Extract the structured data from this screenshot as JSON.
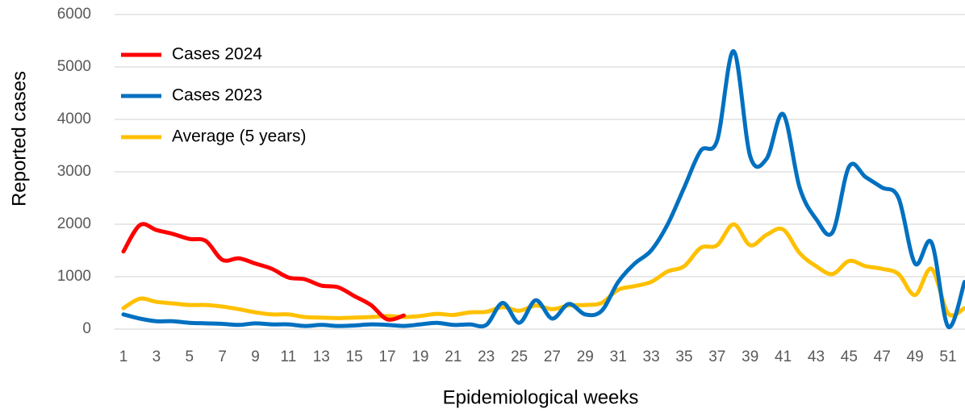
{
  "chart_data": {
    "type": "line",
    "x_label": "Epidemiological weeks",
    "y_label": "Reported cases",
    "categories": [
      1,
      null,
      3,
      null,
      5,
      null,
      7,
      null,
      9,
      null,
      11,
      null,
      13,
      null,
      15,
      null,
      17,
      null,
      19,
      null,
      21,
      null,
      23,
      null,
      25,
      null,
      27,
      null,
      29,
      null,
      31,
      null,
      33,
      null,
      35,
      null,
      37,
      null,
      39,
      null,
      41,
      null,
      43,
      null,
      45,
      null,
      47,
      null,
      49,
      null,
      51,
      null
    ],
    "series": [
      {
        "name": "Cases 2024",
        "color": "#ff0000",
        "values": [
          1480,
          1985,
          1890,
          1815,
          1720,
          1680,
          1320,
          1350,
          1250,
          1150,
          985,
          950,
          830,
          800,
          630,
          460,
          185,
          260,
          null,
          null,
          null,
          null,
          null,
          null,
          null,
          null,
          null,
          null,
          null,
          null,
          null,
          null,
          null,
          null,
          null,
          null,
          null,
          null,
          null,
          null,
          null,
          null,
          null,
          null,
          null,
          null,
          null,
          null,
          null,
          null,
          null,
          null
        ]
      },
      {
        "name": "Cases 2023",
        "color": "#0070c0",
        "values": [
          280,
          200,
          150,
          150,
          120,
          110,
          100,
          80,
          110,
          90,
          90,
          60,
          80,
          60,
          70,
          90,
          80,
          60,
          90,
          120,
          80,
          90,
          80,
          500,
          120,
          550,
          200,
          480,
          280,
          350,
          900,
          1250,
          1500,
          2000,
          2700,
          3400,
          3600,
          5300,
          3300,
          3250,
          4100,
          2700,
          2100,
          1850,
          3100,
          2900,
          2700,
          2500,
          1250,
          1650,
          50,
          900
        ]
      },
      {
        "name": "Average (5 years)",
        "color": "#ffc000",
        "values": [
          400,
          580,
          520,
          490,
          460,
          460,
          430,
          380,
          320,
          280,
          280,
          230,
          220,
          210,
          220,
          230,
          250,
          230,
          250,
          290,
          270,
          320,
          330,
          420,
          350,
          450,
          380,
          450,
          460,
          500,
          750,
          820,
          900,
          1100,
          1200,
          1550,
          1600,
          2000,
          1600,
          1800,
          1900,
          1450,
          1200,
          1050,
          1300,
          1200,
          1150,
          1050,
          650,
          1150,
          300,
          400
        ]
      }
    ],
    "ylim": [
      0,
      6000
    ],
    "yticks": [
      0,
      1000,
      2000,
      3000,
      4000,
      5000,
      6000
    ],
    "grid": true,
    "legend": "upper left"
  }
}
